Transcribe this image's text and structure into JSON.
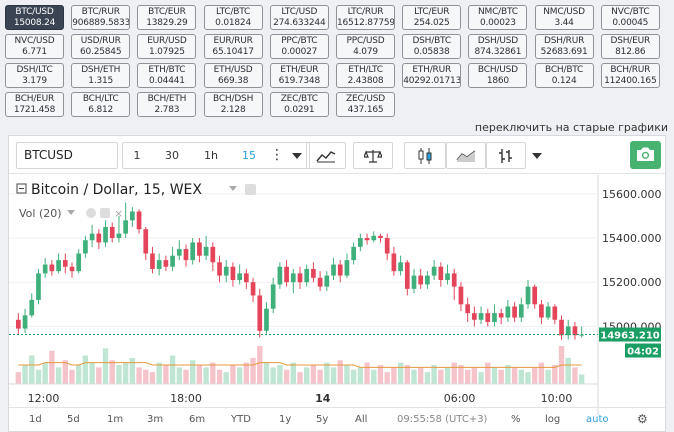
{
  "tickers": [
    {
      "pair": "BTC/USD",
      "price": "15008.24",
      "active": true
    },
    {
      "pair": "BTC/RUR",
      "price": "906889.5833"
    },
    {
      "pair": "BTC/EUR",
      "price": "13829.29"
    },
    {
      "pair": "LTC/BTC",
      "price": "0.01824"
    },
    {
      "pair": "LTC/USD",
      "price": "274.633244"
    },
    {
      "pair": "LTC/RUR",
      "price": "16512.87759"
    },
    {
      "pair": "LTC/EUR",
      "price": "254.025"
    },
    {
      "pair": "NMC/BTC",
      "price": "0.00023"
    },
    {
      "pair": "NMC/USD",
      "price": "3.44"
    },
    {
      "pair": "NVC/BTC",
      "price": "0.00045"
    },
    {
      "pair": "NVC/USD",
      "price": "6.771"
    },
    {
      "pair": "USD/RUR",
      "price": "60.25845"
    },
    {
      "pair": "EUR/USD",
      "price": "1.07925"
    },
    {
      "pair": "EUR/RUR",
      "price": "65.10417"
    },
    {
      "pair": "PPC/BTC",
      "price": "0.00027"
    },
    {
      "pair": "PPC/USD",
      "price": "4.079"
    },
    {
      "pair": "DSH/BTC",
      "price": "0.05838"
    },
    {
      "pair": "DSH/USD",
      "price": "874.32861"
    },
    {
      "pair": "DSH/RUR",
      "price": "52683.691"
    },
    {
      "pair": "DSH/EUR",
      "price": "812.86"
    },
    {
      "pair": "DSH/LTC",
      "price": "3.179"
    },
    {
      "pair": "DSH/ETH",
      "price": "1.315"
    },
    {
      "pair": "ETH/BTC",
      "price": "0.04441"
    },
    {
      "pair": "ETH/USD",
      "price": "669.38"
    },
    {
      "pair": "ETH/EUR",
      "price": "619.7348"
    },
    {
      "pair": "ETH/LTC",
      "price": "2.43808"
    },
    {
      "pair": "ETH/RUR",
      "price": "40292.01713"
    },
    {
      "pair": "BCH/USD",
      "price": "1860"
    },
    {
      "pair": "BCH/BTC",
      "price": "0.124"
    },
    {
      "pair": "BCH/RUR",
      "price": "112400.165"
    },
    {
      "pair": "BCH/EUR",
      "price": "1721.458"
    },
    {
      "pair": "BCH/LTC",
      "price": "6.812"
    },
    {
      "pair": "BCH/ETH",
      "price": "2.783"
    },
    {
      "pair": "BCH/DSH",
      "price": "2.128"
    },
    {
      "pair": "ZEC/BTC",
      "price": "0.0291"
    },
    {
      "pair": "ZEC/USD",
      "price": "437.165"
    }
  ],
  "old_charts_link": "переключить на старые графики",
  "toolbar": {
    "symbol": "BTCUSD",
    "intervals": [
      "1",
      "30",
      "1h",
      "15"
    ],
    "active_interval": "15"
  },
  "legend": {
    "title": "Bitcoin / Dollar, 15, WEX",
    "volume": "Vol (20)"
  },
  "price_axis": {
    "ticks": [
      "15600.000",
      "15400.000",
      "15200.000",
      "15000.000"
    ],
    "ymin": 14780,
    "ymax": 15640,
    "last_price": "14963.210",
    "countdown": "04:02"
  },
  "time_axis": [
    "12:00",
    "18:00",
    "14",
    "06:00",
    "10:00"
  ],
  "bottom_bar": {
    "ranges": [
      "1d",
      "5d",
      "1m",
      "3m",
      "6m",
      "YTD",
      "1y",
      "5y",
      "All"
    ],
    "clock": "09:55:58 (UTC+3)",
    "percent": "%",
    "log": "log",
    "auto": "auto"
  },
  "colors": {
    "up": "#3fb07c",
    "down": "#e4455a",
    "last": "#1a9e63",
    "accent": "#2aa0dc"
  },
  "chart_data": {
    "type": "candlestick",
    "candles": [
      {
        "o": 15030,
        "c": 14990,
        "h": 15060,
        "l": 14960
      },
      {
        "o": 14990,
        "c": 15050,
        "h": 15080,
        "l": 14970
      },
      {
        "o": 15050,
        "c": 15120,
        "h": 15150,
        "l": 15040
      },
      {
        "o": 15120,
        "c": 15240,
        "h": 15260,
        "l": 15100
      },
      {
        "o": 15240,
        "c": 15280,
        "h": 15310,
        "l": 15220
      },
      {
        "o": 15280,
        "c": 15250,
        "h": 15300,
        "l": 15230
      },
      {
        "o": 15250,
        "c": 15300,
        "h": 15330,
        "l": 15240
      },
      {
        "o": 15300,
        "c": 15270,
        "h": 15330,
        "l": 15240
      },
      {
        "o": 15270,
        "c": 15250,
        "h": 15290,
        "l": 15220
      },
      {
        "o": 15250,
        "c": 15330,
        "h": 15350,
        "l": 15240
      },
      {
        "o": 15330,
        "c": 15390,
        "h": 15410,
        "l": 15310
      },
      {
        "o": 15390,
        "c": 15420,
        "h": 15460,
        "l": 15360
      },
      {
        "o": 15420,
        "c": 15380,
        "h": 15440,
        "l": 15350
      },
      {
        "o": 15380,
        "c": 15450,
        "h": 15480,
        "l": 15360
      },
      {
        "o": 15450,
        "c": 15400,
        "h": 15470,
        "l": 15380
      },
      {
        "o": 15400,
        "c": 15420,
        "h": 15500,
        "l": 15380
      },
      {
        "o": 15420,
        "c": 15480,
        "h": 15560,
        "l": 15400
      },
      {
        "o": 15480,
        "c": 15520,
        "h": 15540,
        "l": 15450
      },
      {
        "o": 15520,
        "c": 15440,
        "h": 15530,
        "l": 15420
      },
      {
        "o": 15440,
        "c": 15330,
        "h": 15450,
        "l": 15300
      },
      {
        "o": 15330,
        "c": 15260,
        "h": 15360,
        "l": 15240
      },
      {
        "o": 15260,
        "c": 15300,
        "h": 15330,
        "l": 15230
      },
      {
        "o": 15300,
        "c": 15270,
        "h": 15320,
        "l": 15250
      },
      {
        "o": 15270,
        "c": 15320,
        "h": 15360,
        "l": 15250
      },
      {
        "o": 15320,
        "c": 15350,
        "h": 15390,
        "l": 15300
      },
      {
        "o": 15350,
        "c": 15300,
        "h": 15370,
        "l": 15270
      },
      {
        "o": 15300,
        "c": 15380,
        "h": 15400,
        "l": 15280
      },
      {
        "o": 15380,
        "c": 15320,
        "h": 15400,
        "l": 15290
      },
      {
        "o": 15320,
        "c": 15360,
        "h": 15410,
        "l": 15300
      },
      {
        "o": 15360,
        "c": 15290,
        "h": 15380,
        "l": 15250
      },
      {
        "o": 15290,
        "c": 15230,
        "h": 15320,
        "l": 15200
      },
      {
        "o": 15230,
        "c": 15270,
        "h": 15300,
        "l": 15200
      },
      {
        "o": 15270,
        "c": 15210,
        "h": 15290,
        "l": 15180
      },
      {
        "o": 15210,
        "c": 15240,
        "h": 15280,
        "l": 15190
      },
      {
        "o": 15240,
        "c": 15200,
        "h": 15260,
        "l": 15170
      },
      {
        "o": 15200,
        "c": 15140,
        "h": 15220,
        "l": 15110
      },
      {
        "o": 15140,
        "c": 14980,
        "h": 15170,
        "l": 14950
      },
      {
        "o": 14980,
        "c": 15080,
        "h": 15110,
        "l": 14960
      },
      {
        "o": 15080,
        "c": 15190,
        "h": 15220,
        "l": 15060
      },
      {
        "o": 15190,
        "c": 15270,
        "h": 15290,
        "l": 15170
      },
      {
        "o": 15270,
        "c": 15200,
        "h": 15300,
        "l": 15180
      },
      {
        "o": 15200,
        "c": 15240,
        "h": 15260,
        "l": 15150
      },
      {
        "o": 15240,
        "c": 15200,
        "h": 15270,
        "l": 15170
      },
      {
        "o": 15200,
        "c": 15260,
        "h": 15280,
        "l": 15180
      },
      {
        "o": 15260,
        "c": 15220,
        "h": 15290,
        "l": 15200
      },
      {
        "o": 15220,
        "c": 15180,
        "h": 15250,
        "l": 15160
      },
      {
        "o": 15180,
        "c": 15230,
        "h": 15250,
        "l": 15160
      },
      {
        "o": 15230,
        "c": 15280,
        "h": 15310,
        "l": 15210
      },
      {
        "o": 15280,
        "c": 15230,
        "h": 15300,
        "l": 15200
      },
      {
        "o": 15230,
        "c": 15300,
        "h": 15330,
        "l": 15220
      },
      {
        "o": 15300,
        "c": 15360,
        "h": 15380,
        "l": 15280
      },
      {
        "o": 15360,
        "c": 15400,
        "h": 15420,
        "l": 15340
      },
      {
        "o": 15400,
        "c": 15390,
        "h": 15420,
        "l": 15370
      },
      {
        "o": 15390,
        "c": 15410,
        "h": 15430,
        "l": 15380
      },
      {
        "o": 15410,
        "c": 15400,
        "h": 15420,
        "l": 15380
      },
      {
        "o": 15400,
        "c": 15330,
        "h": 15420,
        "l": 15300
      },
      {
        "o": 15330,
        "c": 15250,
        "h": 15360,
        "l": 15230
      },
      {
        "o": 15250,
        "c": 15290,
        "h": 15320,
        "l": 15230
      },
      {
        "o": 15290,
        "c": 15170,
        "h": 15300,
        "l": 15140
      },
      {
        "o": 15170,
        "c": 15230,
        "h": 15260,
        "l": 15150
      },
      {
        "o": 15230,
        "c": 15190,
        "h": 15260,
        "l": 15170
      },
      {
        "o": 15190,
        "c": 15230,
        "h": 15250,
        "l": 15170
      },
      {
        "o": 15230,
        "c": 15270,
        "h": 15300,
        "l": 15210
      },
      {
        "o": 15270,
        "c": 15210,
        "h": 15290,
        "l": 15180
      },
      {
        "o": 15210,
        "c": 15240,
        "h": 15280,
        "l": 15190
      },
      {
        "o": 15240,
        "c": 15180,
        "h": 15260,
        "l": 15120
      },
      {
        "o": 15180,
        "c": 15100,
        "h": 15200,
        "l": 15070
      },
      {
        "o": 15100,
        "c": 15060,
        "h": 15130,
        "l": 15020
      },
      {
        "o": 15060,
        "c": 15030,
        "h": 15090,
        "l": 15000
      },
      {
        "o": 15030,
        "c": 15060,
        "h": 15090,
        "l": 15010
      },
      {
        "o": 15060,
        "c": 15020,
        "h": 15080,
        "l": 15000
      },
      {
        "o": 15020,
        "c": 15060,
        "h": 15100,
        "l": 15000
      },
      {
        "o": 15060,
        "c": 15040,
        "h": 15080,
        "l": 15010
      },
      {
        "o": 15040,
        "c": 15090,
        "h": 15120,
        "l": 15020
      },
      {
        "o": 15090,
        "c": 15040,
        "h": 15110,
        "l": 15020
      },
      {
        "o": 15040,
        "c": 15100,
        "h": 15130,
        "l": 15020
      },
      {
        "o": 15100,
        "c": 15180,
        "h": 15210,
        "l": 15080
      },
      {
        "o": 15180,
        "c": 15100,
        "h": 15190,
        "l": 15080
      },
      {
        "o": 15100,
        "c": 15040,
        "h": 15120,
        "l": 15010
      },
      {
        "o": 15040,
        "c": 15090,
        "h": 15110,
        "l": 15030
      },
      {
        "o": 15090,
        "c": 15030,
        "h": 15100,
        "l": 15010
      },
      {
        "o": 15030,
        "c": 14960,
        "h": 15050,
        "l": 14940
      },
      {
        "o": 14960,
        "c": 15000,
        "h": 15030,
        "l": 14940
      },
      {
        "o": 15000,
        "c": 14960,
        "h": 15020,
        "l": 14940
      },
      {
        "o": 14960,
        "c": 14963,
        "h": 15000,
        "l": 14950
      }
    ],
    "volumes": [
      5,
      8,
      12,
      6,
      9,
      14,
      7,
      10,
      6,
      8,
      12,
      9,
      7,
      15,
      10,
      8,
      9,
      11,
      7,
      6,
      5,
      9,
      8,
      12,
      7,
      6,
      10,
      8,
      7,
      9,
      6,
      5,
      8,
      7,
      9,
      11,
      16,
      9,
      7,
      8,
      6,
      9,
      5,
      7,
      8,
      6,
      9,
      7,
      10,
      8,
      6,
      7,
      9,
      6,
      8,
      5,
      7,
      9,
      8,
      6,
      7,
      5,
      8,
      6,
      7,
      9,
      8,
      6,
      7,
      5,
      9,
      7,
      6,
      8,
      7,
      6,
      5,
      7,
      9,
      6,
      8,
      16,
      11,
      7,
      4
    ],
    "ma_volume": [
      8,
      8,
      8,
      8,
      9,
      9,
      9,
      9,
      8,
      8,
      9,
      9,
      9,
      9,
      9,
      9,
      9,
      9,
      9,
      9,
      8,
      8,
      8,
      8,
      8,
      8,
      8,
      8,
      8,
      8,
      8,
      8,
      8,
      8,
      8,
      8,
      9,
      9,
      9,
      9,
      8,
      8,
      8,
      8,
      8,
      8,
      8,
      8,
      8,
      8,
      8,
      7,
      7,
      7,
      7,
      7,
      7,
      7,
      7,
      7,
      7,
      7,
      7,
      7,
      7,
      7,
      7,
      7,
      7,
      7,
      7,
      7,
      7,
      7,
      7,
      7,
      7,
      7,
      7,
      7,
      7,
      8,
      8,
      8,
      8
    ]
  }
}
